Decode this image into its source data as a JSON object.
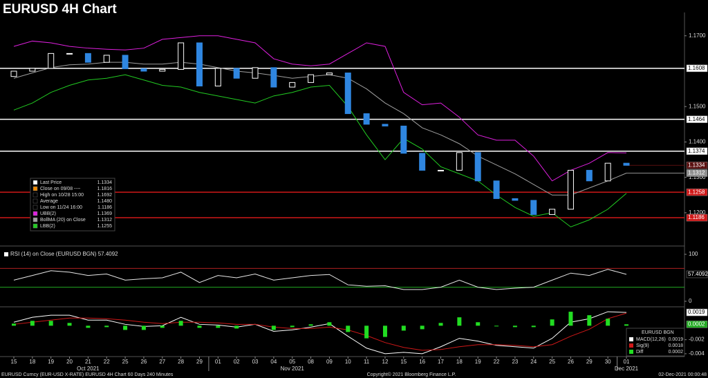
{
  "chart_data": [
    {
      "type": "candlestick",
      "title": "EURUSD 4H Chart",
      "categories": [
        "15",
        "18",
        "19",
        "20",
        "21",
        "22",
        "25",
        "26",
        "27",
        "28",
        "29",
        "01",
        "02",
        "03",
        "04",
        "05",
        "08",
        "09",
        "10",
        "11",
        "12",
        "15",
        "16",
        "17",
        "18",
        "19",
        "22",
        "23",
        "24",
        "25",
        "26",
        "29",
        "30",
        "01"
      ],
      "months": [
        "Oct 2021",
        "Nov 2021",
        "Dec 2021"
      ],
      "open": [
        1.1585,
        1.16,
        1.1608,
        1.165,
        1.165,
        1.1625,
        1.1645,
        1.1607,
        1.16,
        1.1605,
        1.168,
        1.1558,
        1.1608,
        1.158,
        1.161,
        1.1555,
        1.1568,
        1.159,
        1.1595,
        1.148,
        1.145,
        1.1445,
        1.1368,
        1.132,
        1.132,
        1.137,
        1.129,
        1.124,
        1.1235,
        1.1195,
        1.121,
        1.132,
        1.129,
        1.134
      ],
      "close": [
        1.16,
        1.1608,
        1.165,
        1.165,
        1.1625,
        1.1645,
        1.1607,
        1.16,
        1.1605,
        1.168,
        1.1558,
        1.1608,
        1.158,
        1.161,
        1.1555,
        1.1568,
        1.159,
        1.1595,
        1.148,
        1.145,
        1.1445,
        1.1368,
        1.132,
        1.132,
        1.137,
        1.129,
        1.124,
        1.1235,
        1.1195,
        1.121,
        1.132,
        1.129,
        1.134,
        1.1334
      ],
      "up_color": "#ffffff",
      "down_color": "#2f86e0",
      "series": [
        {
          "name": "UBB(2)",
          "color": "#e020e0",
          "values": [
            1.167,
            1.1685,
            1.168,
            1.167,
            1.1665,
            1.1662,
            1.166,
            1.1665,
            1.169,
            1.1695,
            1.17,
            1.17,
            1.169,
            1.168,
            1.1635,
            1.162,
            1.1615,
            1.162,
            1.165,
            1.168,
            1.167,
            1.154,
            1.1505,
            1.151,
            1.147,
            1.142,
            1.1405,
            1.1405,
            1.136,
            1.129,
            1.132,
            1.134,
            1.137,
            1.1369
          ]
        },
        {
          "name": "BollMA (20)  on Close",
          "color": "#a0a0a0",
          "values": [
            1.158,
            1.1595,
            1.161,
            1.1618,
            1.162,
            1.1625,
            1.1625,
            1.162,
            1.162,
            1.1625,
            1.162,
            1.161,
            1.16,
            1.1595,
            1.1588,
            1.158,
            1.1585,
            1.159,
            1.158,
            1.155,
            1.151,
            1.148,
            1.144,
            1.142,
            1.1395,
            1.136,
            1.1335,
            1.131,
            1.128,
            1.125,
            1.125,
            1.127,
            1.129,
            1.1312
          ]
        },
        {
          "name": "LBB(2)",
          "color": "#22cc22",
          "values": [
            1.149,
            1.151,
            1.154,
            1.156,
            1.1575,
            1.158,
            1.159,
            1.1575,
            1.156,
            1.1555,
            1.154,
            1.153,
            1.152,
            1.151,
            1.153,
            1.154,
            1.1555,
            1.156,
            1.15,
            1.142,
            1.135,
            1.141,
            1.138,
            1.133,
            1.131,
            1.129,
            1.125,
            1.1215,
            1.119,
            1.12,
            1.116,
            1.118,
            1.121,
            1.1255
          ]
        }
      ],
      "ylim": [
        1.1108,
        1.1762
      ],
      "yticks": [
        {
          "value": 1.17,
          "label": "1.1700"
        },
        {
          "value": 1.15,
          "label": "1.1500"
        },
        {
          "value": 1.14,
          "label": "1.1400"
        },
        {
          "value": 1.13,
          "label": "1.1300"
        },
        {
          "value": 1.12,
          "label": "1.1200"
        }
      ],
      "levels": [
        {
          "value": 1.1608,
          "label": "1.1608",
          "color": "#ffffff",
          "line": true
        },
        {
          "value": 1.1464,
          "label": "1.1464",
          "color": "#ffffff",
          "line": true
        },
        {
          "value": 1.1374,
          "label": "1.1374",
          "color": "#ffffff",
          "line": true
        },
        {
          "value": 1.1334,
          "label": "1.1334",
          "color": "#5a1010",
          "line": false
        },
        {
          "value": 1.1312,
          "label": "1.1312",
          "color": "#909090",
          "line": false
        },
        {
          "value": 1.1258,
          "label": "1.1258",
          "color": "#d01818",
          "line": true
        },
        {
          "value": 1.1186,
          "label": "1.1186",
          "color": "#d01818",
          "line": true
        }
      ],
      "legend": [
        {
          "name": "Last Price",
          "value": "1.1334",
          "color": "#ffffff"
        },
        {
          "name": "Close on 09/08 ----",
          "value": "1.1816",
          "color": "#f08a00"
        },
        {
          "name": "High on 10/28 15:00",
          "value": "1.1692",
          "color": "#000000"
        },
        {
          "name": "Average",
          "value": "1.1480",
          "color": "#000000"
        },
        {
          "name": "Low on 11/24 16:00",
          "value": "1.1186",
          "color": "#000000"
        },
        {
          "name": "UBB(2)",
          "value": "1.1369",
          "color": "#e020e0"
        },
        {
          "name": "BollMA (20)  on Close",
          "value": "1.1312",
          "color": "#a0a0a0"
        },
        {
          "name": "LBB(2)",
          "value": "1.1255",
          "color": "#22cc22"
        }
      ]
    },
    {
      "type": "line",
      "title": "RSI (14)  on Close (EURUSD BGN) 57.4092",
      "series": [
        {
          "name": "RSI (14)",
          "color": "#e8e8e8",
          "values": [
            45,
            55,
            65,
            62,
            55,
            58,
            45,
            48,
            50,
            62,
            40,
            55,
            50,
            58,
            45,
            50,
            55,
            57,
            35,
            32,
            33,
            25,
            25,
            30,
            45,
            30,
            25,
            28,
            30,
            45,
            60,
            55,
            68,
            57.4092
          ]
        }
      ],
      "ylim": [
        -11.8,
        111.8
      ],
      "yticks": [
        0,
        100
      ],
      "levels": [
        {
          "value": 70,
          "color": "#b02020"
        },
        {
          "value": 30,
          "color": "#22aa22"
        }
      ]
    },
    {
      "type": "macd",
      "legend_title": "EURUSD BGN",
      "series": [
        {
          "name": "MACD(12,26)",
          "color": "#ffffff",
          "value_label": "0.0019",
          "values": [
            0.0005,
            0.0012,
            0.0015,
            0.0015,
            0.0008,
            0.0008,
            0.0002,
            -0.0001,
            0.0,
            0.0012,
            0.0002,
            0.0001,
            -0.0002,
            0.0002,
            -0.0008,
            -0.0006,
            -0.0002,
            0.0003,
            -0.0015,
            -0.0032,
            -0.004,
            -0.0038,
            -0.004,
            -0.003,
            -0.0018,
            -0.0022,
            -0.0028,
            -0.003,
            -0.0032,
            -0.0018,
            0.0005,
            0.001,
            0.002,
            0.0019
          ]
        },
        {
          "name": "Sig(9)",
          "color": "#d01818",
          "value_label": "0.0018",
          "values": [
            0.0002,
            0.0005,
            0.0008,
            0.0011,
            0.0011,
            0.001,
            0.0008,
            0.0005,
            0.0003,
            0.0005,
            0.0005,
            0.0004,
            0.0002,
            0.0002,
            -0.0002,
            -0.0004,
            -0.0004,
            -0.0002,
            -0.0006,
            -0.0014,
            -0.0024,
            -0.0031,
            -0.0035,
            -0.0034,
            -0.003,
            -0.0027,
            -0.0027,
            -0.0028,
            -0.003,
            -0.0027,
            -0.0015,
            -0.0005,
            0.001,
            0.0018
          ]
        },
        {
          "name": "Diff",
          "color": "#22dd22",
          "value_label": "0.0002",
          "values": [
            0.0003,
            0.0007,
            0.0007,
            0.0004,
            -0.0003,
            -0.0002,
            -0.0006,
            -0.0006,
            -0.0003,
            0.0007,
            -0.0003,
            -0.0003,
            -0.0004,
            0.0,
            -0.0006,
            -0.0002,
            0.0002,
            0.0005,
            -0.0009,
            -0.0018,
            -0.0016,
            -0.0007,
            -0.0005,
            0.0004,
            0.0012,
            0.0005,
            -0.0001,
            -0.0002,
            -0.0002,
            0.0009,
            0.002,
            0.0015,
            0.001,
            0.0002
          ]
        }
      ],
      "ylim": [
        -0.0048,
        0.0025
      ],
      "yticks": [
        -0.002,
        -0.004
      ]
    }
  ],
  "footer": {
    "left": "EURUSD Curncy (EUR-USD X-RATE) EURUSD 4H Chart 60 Days 240 Minutes",
    "center": "Copyright© 2021 Bloomberg Finance L.P.",
    "right": "02-Dec-2021 00:00:48"
  }
}
